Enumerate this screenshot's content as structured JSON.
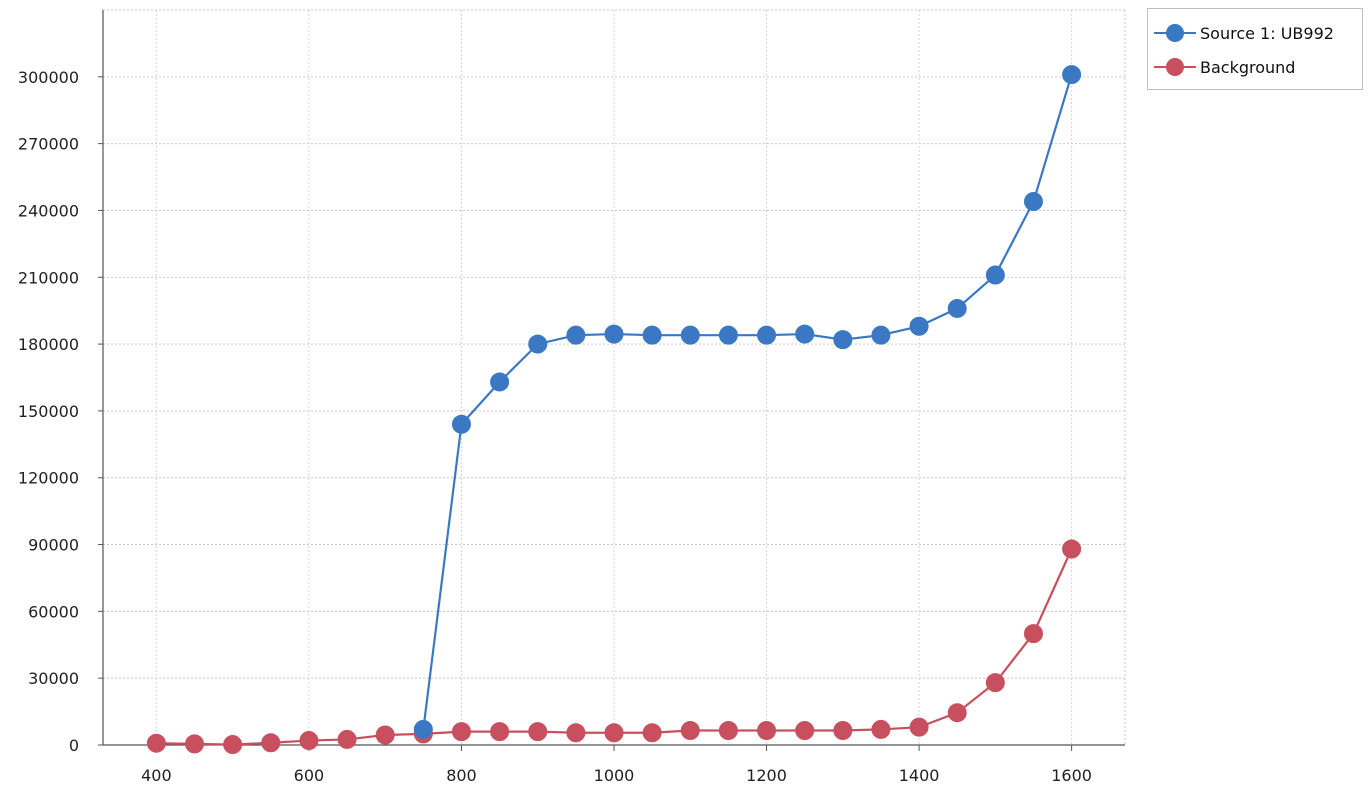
{
  "chart_data": {
    "type": "line",
    "title": "",
    "xlabel": "",
    "ylabel": "",
    "xlim": [
      330,
      1670
    ],
    "ylim": [
      0,
      330000
    ],
    "xticks": [
      400,
      600,
      800,
      1000,
      1200,
      1400,
      1600
    ],
    "yticks": [
      0,
      30000,
      60000,
      90000,
      120000,
      150000,
      180000,
      210000,
      240000,
      270000,
      300000
    ],
    "grid": true,
    "legend_position": "top-right, outside plot",
    "x": [
      400,
      450,
      500,
      550,
      600,
      650,
      700,
      750,
      800,
      850,
      900,
      950,
      1000,
      1050,
      1100,
      1150,
      1200,
      1250,
      1300,
      1350,
      1400,
      1450,
      1500,
      1550,
      1600
    ],
    "series": [
      {
        "name": "Source 1: UB992",
        "color": "#3a78c4",
        "values": [
          null,
          null,
          null,
          null,
          null,
          null,
          null,
          7000,
          144000,
          163000,
          180000,
          184000,
          184500,
          184000,
          184000,
          184000,
          184000,
          184500,
          182000,
          184000,
          188000,
          196000,
          211000,
          244000,
          301000
        ]
      },
      {
        "name": "Background",
        "color": "#c8505e",
        "values": [
          800,
          500,
          200,
          1000,
          2000,
          2500,
          4500,
          5000,
          6000,
          6000,
          6000,
          5500,
          5500,
          5500,
          6500,
          6500,
          6500,
          6500,
          6500,
          7000,
          8000,
          14500,
          28000,
          50000,
          88000
        ]
      }
    ]
  }
}
